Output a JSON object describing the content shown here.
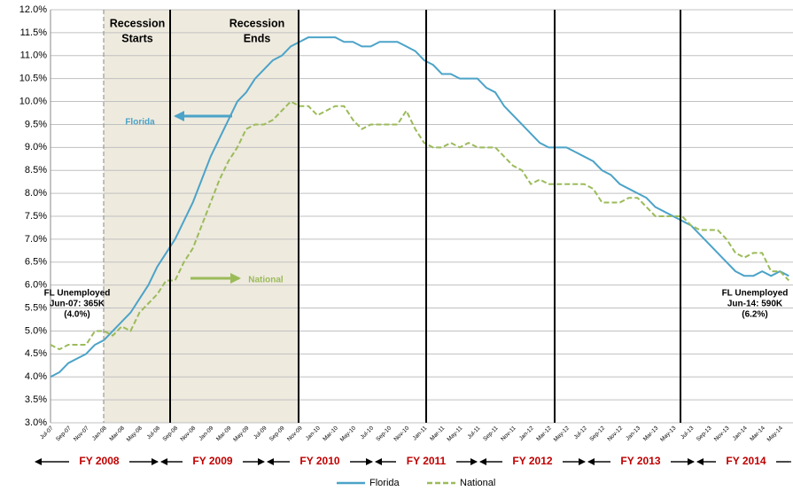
{
  "chart_data": {
    "type": "line",
    "categories": [
      "Jul-07",
      null,
      "Sep-07",
      null,
      "Nov-07",
      null,
      "Jan-08",
      null,
      "Mar-08",
      null,
      "May-08",
      null,
      "Jul-08",
      null,
      "Sep-08",
      null,
      "Nov-08",
      null,
      "Jan-09",
      null,
      "Mar-09",
      null,
      "May-09",
      null,
      "Jul-09",
      null,
      "Sep-09",
      null,
      "Nov-09",
      null,
      "Jan-10",
      null,
      "Mar-10",
      null,
      "May-10",
      null,
      "Jul-10",
      null,
      "Sep-10",
      null,
      "Nov-10",
      null,
      "Jan-11",
      null,
      "Mar-11",
      null,
      "May-11",
      null,
      "Jul-11",
      null,
      "Sep-11",
      null,
      "Nov-11",
      null,
      "Jan-12",
      null,
      "Mar-12",
      null,
      "May-12",
      null,
      "Jul-12",
      null,
      "Sep-12",
      null,
      "Nov-12",
      null,
      "Jan-13",
      null,
      "Mar-13",
      null,
      "May-13",
      null,
      "Jul-13",
      null,
      "Sep-13",
      null,
      "Nov-13",
      null,
      "Jan-14",
      null,
      "Mar-14",
      null,
      "May-14",
      null
    ],
    "series": [
      {
        "name": "Florida",
        "color": "#4ba3c8",
        "dashed": false,
        "values": [
          4.0,
          4.1,
          4.3,
          4.4,
          4.5,
          4.7,
          4.8,
          5.0,
          5.2,
          5.4,
          5.7,
          6.0,
          6.4,
          6.7,
          7.0,
          7.4,
          7.8,
          8.3,
          8.8,
          9.2,
          9.6,
          10.0,
          10.2,
          10.5,
          10.7,
          10.9,
          11.0,
          11.2,
          11.3,
          11.4,
          11.4,
          11.4,
          11.4,
          11.3,
          11.3,
          11.2,
          11.2,
          11.3,
          11.3,
          11.3,
          11.2,
          11.1,
          10.9,
          10.8,
          10.6,
          10.6,
          10.5,
          10.5,
          10.5,
          10.3,
          10.2,
          9.9,
          9.7,
          9.5,
          9.3,
          9.1,
          9.0,
          9.0,
          9.0,
          8.9,
          8.8,
          8.7,
          8.5,
          8.4,
          8.2,
          8.1,
          8.0,
          7.9,
          7.7,
          7.6,
          7.5,
          7.4,
          7.3,
          7.1,
          6.9,
          6.7,
          6.5,
          6.3,
          6.2,
          6.2,
          6.3,
          6.2,
          6.3,
          6.2
        ]
      },
      {
        "name": "National",
        "color": "#9bbb59",
        "dashed": true,
        "values": [
          4.7,
          4.6,
          4.7,
          4.7,
          4.7,
          5.0,
          5.0,
          4.9,
          5.1,
          5.0,
          5.4,
          5.6,
          5.8,
          6.1,
          6.1,
          6.5,
          6.8,
          7.3,
          7.8,
          8.3,
          8.7,
          9.0,
          9.4,
          9.5,
          9.5,
          9.6,
          9.8,
          10.0,
          9.9,
          9.9,
          9.7,
          9.8,
          9.9,
          9.9,
          9.6,
          9.4,
          9.5,
          9.5,
          9.5,
          9.5,
          9.8,
          9.4,
          9.1,
          9.0,
          9.0,
          9.1,
          9.0,
          9.1,
          9.0,
          9.0,
          9.0,
          8.8,
          8.6,
          8.5,
          8.2,
          8.3,
          8.2,
          8.2,
          8.2,
          8.2,
          8.2,
          8.1,
          7.8,
          7.8,
          7.8,
          7.9,
          7.9,
          7.7,
          7.5,
          7.5,
          7.5,
          7.5,
          7.3,
          7.2,
          7.2,
          7.2,
          7.0,
          6.7,
          6.6,
          6.7,
          6.7,
          6.3,
          6.3,
          6.1
        ]
      }
    ],
    "ylim": [
      3,
      12
    ],
    "yticks": [
      {
        "value": 3,
        "label": "3.0%"
      },
      {
        "value": 3.5,
        "label": "3.5%"
      },
      {
        "value": 4,
        "label": "4.0%"
      },
      {
        "value": 4.5,
        "label": "4.5%"
      },
      {
        "value": 5,
        "label": "5.0%"
      },
      {
        "value": 5.5,
        "label": "5.5%"
      },
      {
        "value": 6,
        "label": "6.0%"
      },
      {
        "value": 6.5,
        "label": "6.5%"
      },
      {
        "value": 7,
        "label": "7.0%"
      },
      {
        "value": 7.5,
        "label": "7.5%"
      },
      {
        "value": 8,
        "label": "8.0%"
      },
      {
        "value": 8.5,
        "label": "8.5%"
      },
      {
        "value": 9,
        "label": "9.0%"
      },
      {
        "value": 9.5,
        "label": "9.5%"
      },
      {
        "value": 10,
        "label": "10.0%"
      },
      {
        "value": 10.5,
        "label": "10.5%"
      },
      {
        "value": 11,
        "label": "11.0%"
      },
      {
        "value": 11.5,
        "label": "11.5%"
      },
      {
        "value": 12,
        "label": "12.0%"
      }
    ],
    "grid": true,
    "fiscal_years": [
      "FY 2008",
      "FY 2009",
      "FY 2010",
      "FY 2011",
      "FY 2012",
      "FY 2013",
      "FY 2014"
    ],
    "annotations": [
      {
        "lines": [
          "Recession",
          "Starts"
        ]
      },
      {
        "lines": [
          "Recession",
          "Ends"
        ]
      },
      {
        "lines": [
          "Florida"
        ]
      },
      {
        "lines": [
          "National"
        ]
      },
      {
        "lines": [
          "FL Unemployed",
          "Jun-07: 365K",
          "(4.0%)"
        ]
      },
      {
        "lines": [
          "FL Unemployed",
          "Jun-14: 590K",
          "(6.2%)"
        ]
      }
    ]
  }
}
